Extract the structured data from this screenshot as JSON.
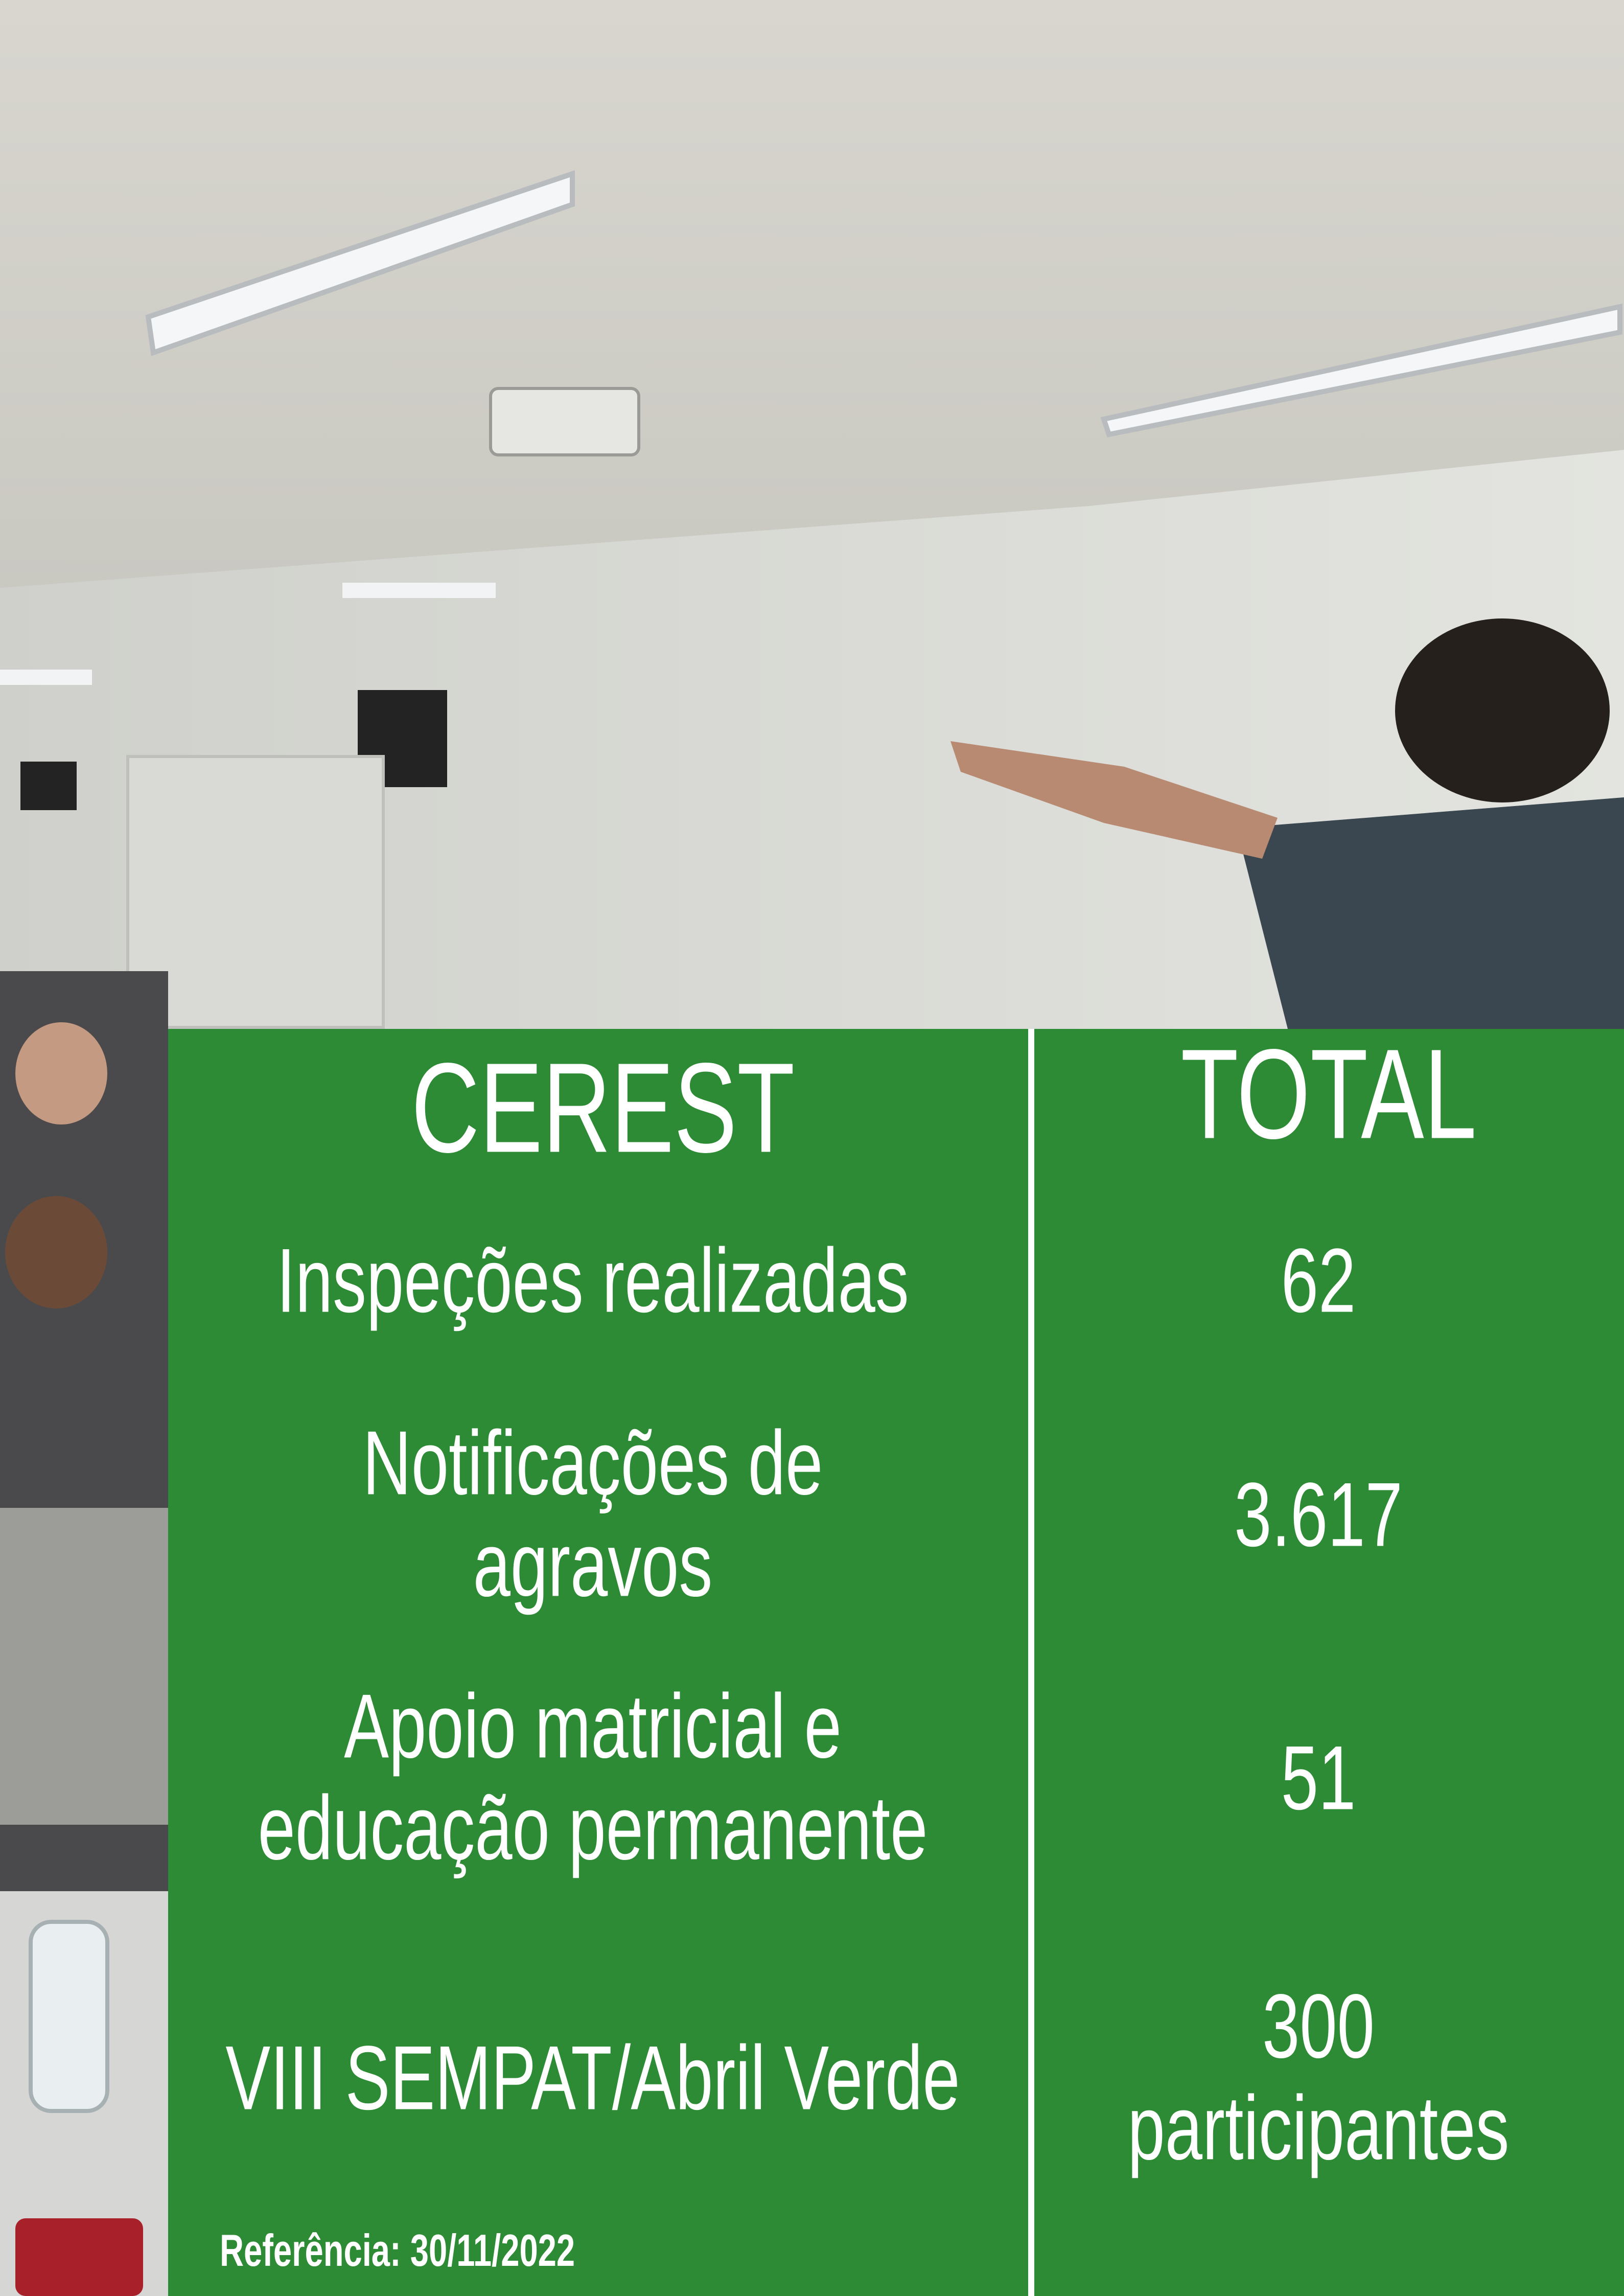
{
  "header": {
    "col1": "CEREST",
    "col2": "TOTAL"
  },
  "rows": [
    {
      "label": [
        "Inspeções realizadas"
      ],
      "value": [
        "62"
      ]
    },
    {
      "label": [
        "Notificações de",
        "agravos"
      ],
      "value": [
        "3.617"
      ]
    },
    {
      "label": [
        "Apoio matricial e",
        "educação permanente"
      ],
      "value": [
        "51"
      ]
    },
    {
      "label": [
        "VIII SEMPAT/Abril Verde"
      ],
      "value": [
        "300",
        "participantes"
      ]
    }
  ],
  "reference": "Referência: 30/11/2022"
}
